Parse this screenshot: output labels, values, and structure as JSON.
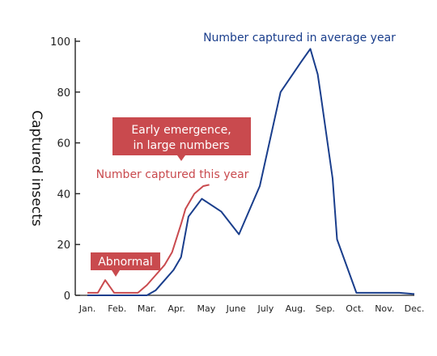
{
  "chart_data": {
    "type": "line",
    "ylabel": "Captured insects",
    "ylim": [
      0,
      100
    ],
    "yticks": [
      0,
      20,
      40,
      60,
      80,
      100
    ],
    "xlim": [
      0,
      11
    ],
    "months": [
      "Jan.",
      "Feb.",
      "Mar.",
      "Apr.",
      "May",
      "June",
      "July",
      "Aug.",
      "Sep.",
      "Oct.",
      "Nov.",
      "Dec."
    ],
    "series": [
      {
        "name": "Number captured in average year",
        "color": "#1a3e8c",
        "points": [
          [
            0,
            0
          ],
          [
            1,
            0
          ],
          [
            2,
            0
          ],
          [
            2.3,
            2
          ],
          [
            2.6,
            6
          ],
          [
            2.9,
            10
          ],
          [
            3.15,
            15
          ],
          [
            3.4,
            31
          ],
          [
            3.85,
            38
          ],
          [
            4.5,
            33
          ],
          [
            5.1,
            24
          ],
          [
            5.8,
            43
          ],
          [
            6.5,
            80
          ],
          [
            7.2,
            92
          ],
          [
            7.5,
            97
          ],
          [
            7.75,
            87
          ],
          [
            7.85,
            79
          ],
          [
            8.25,
            46
          ],
          [
            8.4,
            22
          ],
          [
            9.05,
            1
          ],
          [
            10.5,
            1
          ],
          [
            11,
            0.5
          ]
        ]
      },
      {
        "name": "Number captured this year",
        "color": "#c94a4e",
        "points": [
          [
            0,
            1
          ],
          [
            0.35,
            1
          ],
          [
            0.6,
            6
          ],
          [
            0.9,
            1
          ],
          [
            1.3,
            1
          ],
          [
            1.7,
            1
          ],
          [
            2,
            4
          ],
          [
            2.3,
            8
          ],
          [
            2.6,
            12
          ],
          [
            2.85,
            17
          ],
          [
            3.15,
            28
          ],
          [
            3.3,
            34
          ],
          [
            3.6,
            40
          ],
          [
            3.9,
            43
          ],
          [
            4.1,
            43.5
          ]
        ]
      }
    ],
    "annotations": {
      "early": "Early emergence,\nin large numbers",
      "abnormal": "Abnormal"
    }
  }
}
